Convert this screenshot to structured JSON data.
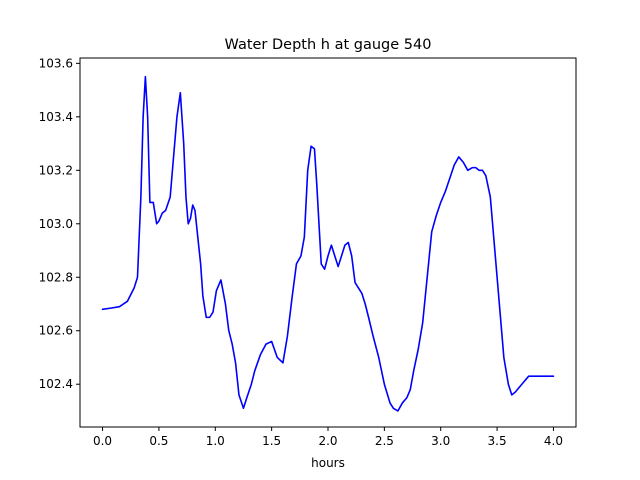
{
  "chart_data": {
    "type": "line",
    "title": "Water Depth h at gauge 540",
    "xlabel": "hours",
    "ylabel": "",
    "xlim": [
      -0.2,
      4.2
    ],
    "ylim": [
      102.24,
      103.62
    ],
    "xticks": [
      0.0,
      0.5,
      1.0,
      1.5,
      2.0,
      2.5,
      3.0,
      3.5,
      4.0
    ],
    "xtick_labels": [
      "0.0",
      "0.5",
      "1.0",
      "1.5",
      "2.0",
      "2.5",
      "3.0",
      "3.5",
      "4.0"
    ],
    "yticks": [
      102.4,
      102.6,
      102.8,
      103.0,
      103.2,
      103.4,
      103.6
    ],
    "ytick_labels": [
      "102.4",
      "102.6",
      "102.8",
      "103.0",
      "103.2",
      "103.4",
      "103.6"
    ],
    "grid": false,
    "series": [
      {
        "color": "#0000ff",
        "x": [
          0.0,
          0.08,
          0.15,
          0.22,
          0.28,
          0.31,
          0.34,
          0.36,
          0.38,
          0.4,
          0.42,
          0.45,
          0.48,
          0.5,
          0.53,
          0.56,
          0.6,
          0.63,
          0.66,
          0.69,
          0.72,
          0.74,
          0.76,
          0.78,
          0.8,
          0.82,
          0.85,
          0.87,
          0.89,
          0.92,
          0.95,
          0.98,
          1.01,
          1.05,
          1.09,
          1.12,
          1.15,
          1.18,
          1.21,
          1.25,
          1.28,
          1.32,
          1.35,
          1.4,
          1.45,
          1.5,
          1.55,
          1.6,
          1.64,
          1.68,
          1.72,
          1.76,
          1.79,
          1.82,
          1.85,
          1.88,
          1.9,
          1.92,
          1.94,
          1.97,
          2.0,
          2.03,
          2.06,
          2.09,
          2.12,
          2.15,
          2.18,
          2.21,
          2.24,
          2.27,
          2.3,
          2.33,
          2.36,
          2.4,
          2.45,
          2.5,
          2.55,
          2.58,
          2.62,
          2.66,
          2.7,
          2.73,
          2.76,
          2.8,
          2.84,
          2.88,
          2.92,
          2.96,
          3.0,
          3.04,
          3.08,
          3.12,
          3.16,
          3.2,
          3.24,
          3.28,
          3.31,
          3.34,
          3.37,
          3.4,
          3.44,
          3.48,
          3.52,
          3.56,
          3.6,
          3.63,
          3.66,
          3.7,
          3.74,
          3.78,
          3.82,
          3.86,
          3.9,
          3.95,
          4.0
        ],
        "y": [
          102.68,
          102.685,
          102.69,
          102.71,
          102.76,
          102.8,
          103.1,
          103.4,
          103.55,
          103.4,
          103.08,
          103.08,
          103.0,
          103.01,
          103.04,
          103.05,
          103.1,
          103.25,
          103.4,
          103.49,
          103.3,
          103.1,
          103.0,
          103.02,
          103.07,
          103.05,
          102.93,
          102.85,
          102.73,
          102.65,
          102.65,
          102.67,
          102.75,
          102.79,
          102.7,
          102.6,
          102.55,
          102.48,
          102.36,
          102.31,
          102.35,
          102.4,
          102.45,
          102.51,
          102.55,
          102.56,
          102.5,
          102.48,
          102.58,
          102.72,
          102.85,
          102.88,
          102.95,
          103.2,
          103.29,
          103.28,
          103.15,
          103.0,
          102.85,
          102.83,
          102.88,
          102.92,
          102.88,
          102.84,
          102.88,
          102.92,
          102.93,
          102.88,
          102.78,
          102.76,
          102.74,
          102.7,
          102.65,
          102.58,
          102.5,
          102.4,
          102.33,
          102.31,
          102.3,
          102.33,
          102.35,
          102.38,
          102.45,
          102.53,
          102.63,
          102.8,
          102.97,
          103.03,
          103.08,
          103.12,
          103.17,
          103.22,
          103.25,
          103.23,
          103.2,
          103.21,
          103.21,
          103.2,
          103.2,
          103.18,
          103.1,
          102.9,
          102.7,
          102.5,
          102.4,
          102.36,
          102.37,
          102.39,
          102.41,
          102.43,
          102.43,
          102.43,
          102.43,
          102.43,
          102.43
        ]
      }
    ]
  }
}
